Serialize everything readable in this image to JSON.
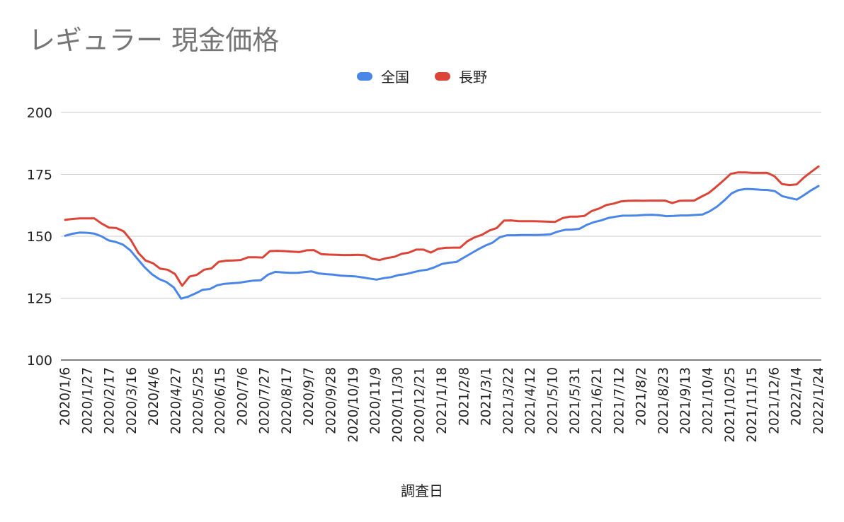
{
  "chart_data": {
    "type": "line",
    "title": "レギュラー 現金価格",
    "xlabel": "調査日",
    "ylabel": "",
    "ylim": [
      100,
      200
    ],
    "yticks": [
      100,
      125,
      150,
      175,
      200
    ],
    "grid": true,
    "legend_position": "top",
    "x_tick_labels": [
      "2020/1/6",
      "2020/1/27",
      "2020/2/17",
      "2020/3/16",
      "2020/4/6",
      "2020/4/27",
      "2020/5/25",
      "2020/6/15",
      "2020/7/6",
      "2020/7/27",
      "2020/8/17",
      "2020/9/7",
      "2020/9/28",
      "2020/10/19",
      "2020/11/9",
      "2020/11/30",
      "2020/12/21",
      "2021/1/18",
      "2021/2/8",
      "2021/3/1",
      "2021/3/22",
      "2021/4/12",
      "2021/5/10",
      "2021/5/31",
      "2021/6/21",
      "2021/7/12",
      "2021/8/2",
      "2021/8/23",
      "2021/9/13",
      "2021/10/4",
      "2021/10/25",
      "2021/11/15",
      "2021/12/6",
      "2022/1/4",
      "2022/1/24"
    ],
    "series": [
      {
        "name": "全国",
        "color": "#4a86e8",
        "values": [
          150.2,
          151.0,
          151.5,
          151.4,
          151.1,
          150.0,
          148.3,
          147.7,
          146.6,
          144.3,
          140.8,
          137.4,
          134.6,
          132.7,
          131.5,
          129.3,
          124.8,
          125.6,
          126.9,
          128.4,
          128.7,
          130.2,
          130.8,
          131.0,
          131.2,
          131.7,
          132.1,
          132.2,
          134.5,
          135.6,
          135.4,
          135.2,
          135.2,
          135.5,
          135.8,
          135.0,
          134.7,
          134.5,
          134.1,
          133.9,
          133.8,
          133.4,
          132.9,
          132.5,
          133.1,
          133.5,
          134.3,
          134.7,
          135.4,
          136.1,
          136.5,
          137.5,
          138.8,
          139.3,
          139.6,
          141.3,
          143.0,
          144.7,
          146.2,
          147.4,
          149.6,
          150.4,
          150.4,
          150.5,
          150.5,
          150.5,
          150.6,
          150.8,
          151.9,
          152.6,
          152.7,
          153.0,
          154.6,
          155.7,
          156.4,
          157.4,
          157.9,
          158.3,
          158.3,
          158.4,
          158.6,
          158.7,
          158.5,
          158.1,
          158.2,
          158.4,
          158.4,
          158.6,
          158.8,
          160.1,
          162.0,
          164.5,
          167.3,
          168.7,
          169.1,
          169.0,
          168.8,
          168.7,
          168.2,
          166.2,
          165.5,
          164.8,
          166.6,
          168.6,
          170.3
        ]
      },
      {
        "name": "長野",
        "color": "#db4437",
        "values": [
          156.6,
          157.0,
          157.2,
          157.2,
          157.2,
          155.1,
          153.5,
          153.3,
          152.0,
          148.4,
          143.3,
          140.2,
          139.1,
          136.9,
          136.5,
          134.8,
          130.0,
          133.7,
          134.4,
          136.5,
          137.0,
          139.7,
          140.1,
          140.2,
          140.4,
          141.5,
          141.5,
          141.4,
          144.0,
          144.1,
          144.0,
          143.8,
          143.6,
          144.3,
          144.4,
          142.8,
          142.6,
          142.5,
          142.4,
          142.4,
          142.5,
          142.3,
          140.9,
          140.4,
          141.2,
          141.7,
          142.9,
          143.4,
          144.6,
          144.6,
          143.4,
          144.9,
          145.3,
          145.4,
          145.4,
          148.0,
          149.6,
          150.6,
          152.3,
          153.3,
          156.3,
          156.4,
          156.1,
          156.1,
          156.1,
          156.0,
          155.9,
          155.8,
          157.3,
          157.9,
          157.9,
          158.2,
          160.2,
          161.2,
          162.6,
          163.2,
          164.1,
          164.3,
          164.4,
          164.3,
          164.4,
          164.4,
          164.4,
          163.4,
          164.3,
          164.4,
          164.4,
          166.0,
          167.5,
          169.9,
          172.5,
          175.2,
          175.8,
          175.8,
          175.6,
          175.6,
          175.6,
          174.2,
          171.1,
          170.7,
          170.9,
          173.7,
          176.0,
          178.2
        ]
      }
    ]
  }
}
